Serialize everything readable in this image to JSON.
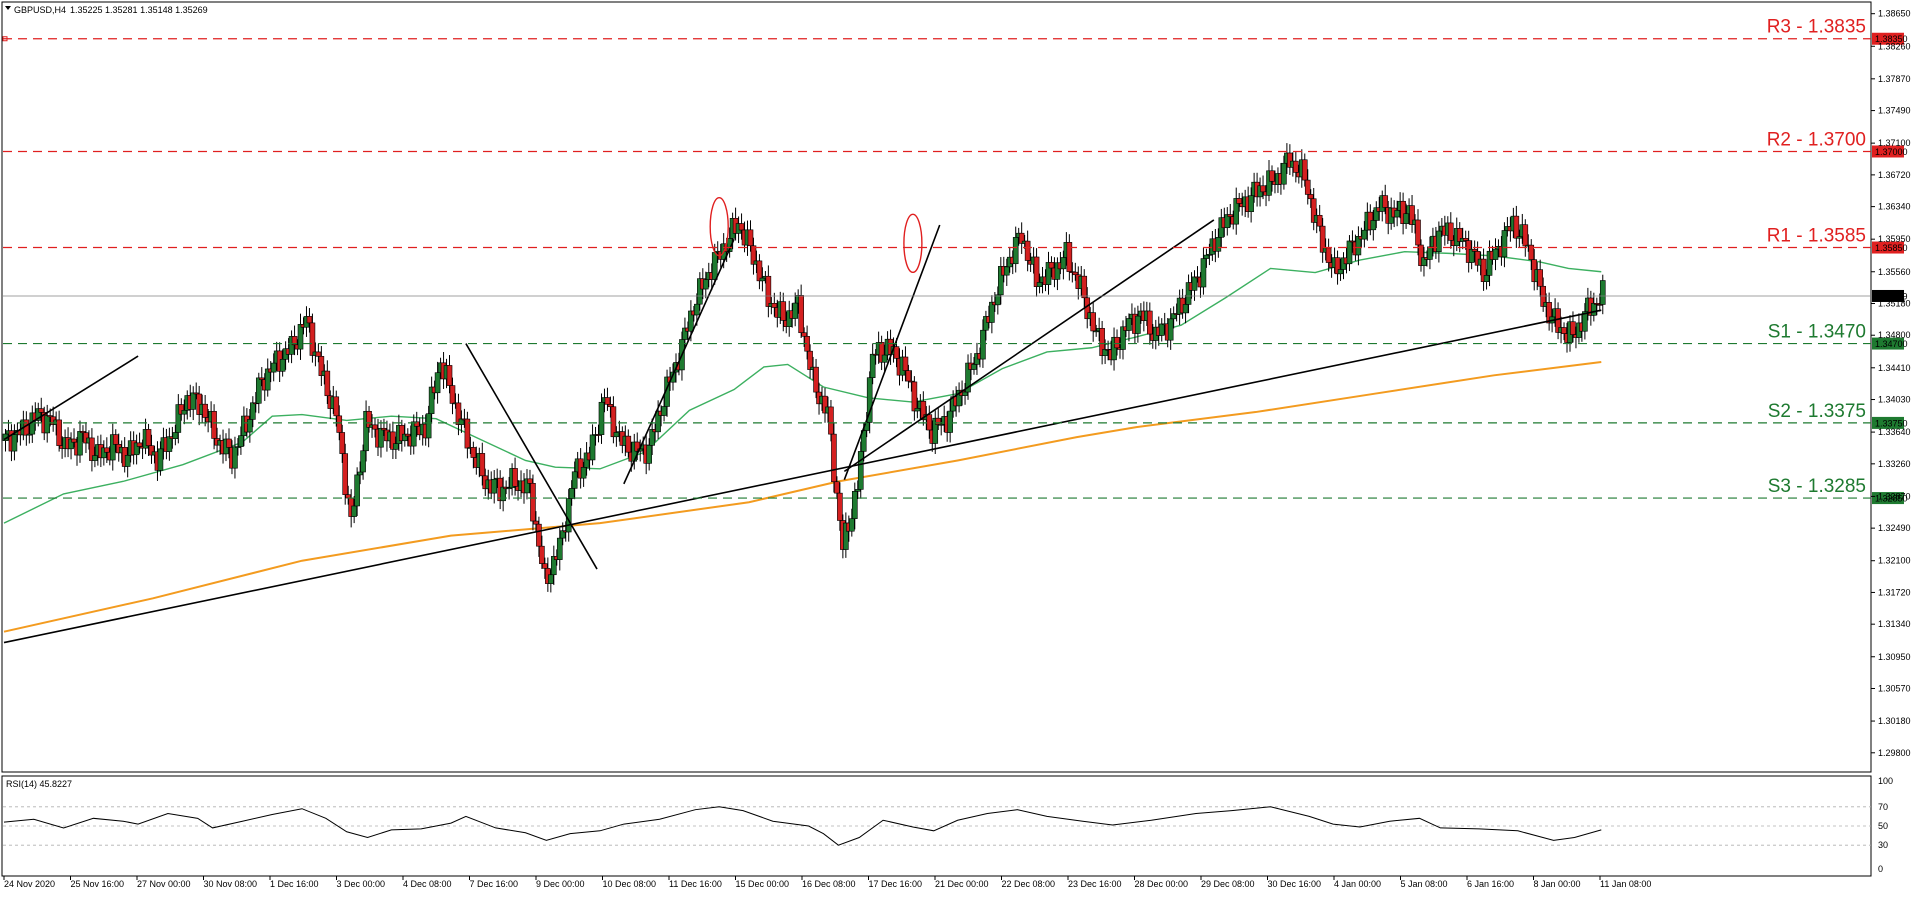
{
  "header": {
    "symbol": "GBPUSD,H4",
    "ohlc": "1.35225 1.35281 1.35148 1.35269"
  },
  "indicator": {
    "label": "RSI(14) 45.8227",
    "ticks": [
      100,
      70,
      50,
      30,
      0
    ]
  },
  "colors": {
    "bull": "#1e7a30",
    "bear": "#d42020",
    "resistance": "#e02020",
    "support": "#1e7a30",
    "ma_fast": "#3cb060",
    "ma_slow": "#f39b1f",
    "current_price": "#000000"
  },
  "chart_data": {
    "type": "candlestick",
    "timeframe": "H4",
    "ylim": [
      1.2957,
      1.3879
    ],
    "y_ticks": [
      1.3865,
      1.3826,
      1.3787,
      1.3749,
      1.371,
      1.3672,
      1.3634,
      1.3595,
      1.3556,
      1.3518,
      1.348,
      1.3441,
      1.3403,
      1.3364,
      1.3326,
      1.3287,
      1.3249,
      1.321,
      1.3172,
      1.3134,
      1.3095,
      1.3057,
      1.3018,
      1.298
    ],
    "x_ticks": [
      "24 Nov 2020",
      "25 Nov 16:00",
      "27 Nov 00:00",
      "30 Nov 08:00",
      "1 Dec 16:00",
      "3 Dec 00:00",
      "4 Dec 08:00",
      "7 Dec 16:00",
      "9 Dec 00:00",
      "10 Dec 08:00",
      "11 Dec 16:00",
      "15 Dec 00:00",
      "16 Dec 08:00",
      "17 Dec 16:00",
      "21 Dec 00:00",
      "22 Dec 08:00",
      "23 Dec 16:00",
      "28 Dec 00:00",
      "29 Dec 08:00",
      "30 Dec 16:00",
      "4 Jan 00:00",
      "5 Jan 08:00",
      "6 Jan 16:00",
      "8 Jan 00:00",
      "11 Jan 08:00"
    ],
    "current_price": 1.3527,
    "levels": [
      {
        "name": "R3",
        "label": "R3 - 1.3835",
        "price": 1.3835,
        "box": "1.38350",
        "kind": "resistance"
      },
      {
        "name": "R2",
        "label": "R2 - 1.3700",
        "price": 1.37,
        "box": "1.37000",
        "kind": "resistance"
      },
      {
        "name": "R1",
        "label": "R1 - 1.3585",
        "price": 1.3585,
        "box": "1.35850",
        "kind": "resistance"
      },
      {
        "name": "S1",
        "label": "S1 - 1.3470",
        "price": 1.347,
        "box": "1.34700",
        "kind": "support"
      },
      {
        "name": "S2",
        "label": "S2 - 1.3375",
        "price": 1.3375,
        "box": "1.33750",
        "kind": "support"
      },
      {
        "name": "S3",
        "label": "S3 - 1.3285",
        "price": 1.3285,
        "box": "1.32850",
        "kind": "support"
      }
    ],
    "current_box": "1.35269",
    "candle_anchors": [
      [
        0,
        1.3355
      ],
      [
        6,
        1.3365
      ],
      [
        11,
        1.3385
      ],
      [
        16,
        1.3375
      ],
      [
        20,
        1.3345
      ],
      [
        26,
        1.3358
      ],
      [
        31,
        1.3335
      ],
      [
        36,
        1.3348
      ],
      [
        41,
        1.3335
      ],
      [
        46,
        1.3356
      ],
      [
        51,
        1.3332
      ],
      [
        56,
        1.3362
      ],
      [
        61,
        1.3405
      ],
      [
        66,
        1.3395
      ],
      [
        71,
        1.3355
      ],
      [
        76,
        1.3335
      ],
      [
        81,
        1.3375
      ],
      [
        86,
        1.3425
      ],
      [
        91,
        1.3448
      ],
      [
        96,
        1.3465
      ],
      [
        101,
        1.3498
      ],
      [
        106,
        1.3435
      ],
      [
        111,
        1.3385
      ],
      [
        116,
        1.3255
      ],
      [
        121,
        1.3375
      ],
      [
        126,
        1.336
      ],
      [
        131,
        1.3355
      ],
      [
        136,
        1.3362
      ],
      [
        141,
        1.337
      ],
      [
        146,
        1.345
      ],
      [
        151,
        1.3395
      ],
      [
        156,
        1.3345
      ],
      [
        161,
        1.3305
      ],
      [
        166,
        1.3295
      ],
      [
        171,
        1.3305
      ],
      [
        176,
        1.3295
      ],
      [
        181,
        1.3185
      ],
      [
        186,
        1.3225
      ],
      [
        191,
        1.3315
      ],
      [
        196,
        1.3335
      ],
      [
        201,
        1.3405
      ],
      [
        206,
        1.3355
      ],
      [
        211,
        1.334
      ],
      [
        216,
        1.3345
      ],
      [
        221,
        1.3405
      ],
      [
        226,
        1.3455
      ],
      [
        231,
        1.3515
      ],
      [
        236,
        1.3555
      ],
      [
        241,
        1.3585
      ],
      [
        246,
        1.3615
      ],
      [
        251,
        1.3575
      ],
      [
        256,
        1.3525
      ],
      [
        261,
        1.3498
      ],
      [
        266,
        1.3515
      ],
      [
        271,
        1.3425
      ],
      [
        276,
        1.3385
      ],
      [
        281,
        1.3225
      ],
      [
        286,
        1.33
      ],
      [
        291,
        1.3455
      ],
      [
        296,
        1.3465
      ],
      [
        301,
        1.3445
      ],
      [
        306,
        1.3395
      ],
      [
        311,
        1.3365
      ],
      [
        316,
        1.338
      ],
      [
        321,
        1.3415
      ],
      [
        326,
        1.3455
      ],
      [
        331,
        1.3515
      ],
      [
        336,
        1.3565
      ],
      [
        341,
        1.36
      ],
      [
        346,
        1.3545
      ],
      [
        351,
        1.3555
      ],
      [
        356,
        1.3575
      ],
      [
        361,
        1.3535
      ],
      [
        366,
        1.348
      ],
      [
        371,
        1.3455
      ],
      [
        376,
        1.349
      ],
      [
        381,
        1.3505
      ],
      [
        386,
        1.348
      ],
      [
        391,
        1.3495
      ],
      [
        396,
        1.3525
      ],
      [
        401,
        1.3555
      ],
      [
        406,
        1.3595
      ],
      [
        411,
        1.3625
      ],
      [
        416,
        1.364
      ],
      [
        421,
        1.3655
      ],
      [
        426,
        1.3665
      ],
      [
        431,
        1.369
      ],
      [
        436,
        1.3668
      ],
      [
        441,
        1.36
      ],
      [
        446,
        1.3555
      ],
      [
        451,
        1.358
      ],
      [
        456,
        1.3605
      ],
      [
        461,
        1.3635
      ],
      [
        466,
        1.3625
      ],
      [
        471,
        1.363
      ],
      [
        476,
        1.3565
      ],
      [
        481,
        1.3605
      ],
      [
        486,
        1.36
      ],
      [
        491,
        1.3585
      ],
      [
        496,
        1.3555
      ],
      [
        501,
        1.3585
      ],
      [
        506,
        1.3615
      ],
      [
        511,
        1.3585
      ],
      [
        516,
        1.352
      ],
      [
        521,
        1.349
      ],
      [
        526,
        1.3478
      ],
      [
        531,
        1.351
      ],
      [
        536,
        1.3528
      ]
    ],
    "ma_fast": [
      [
        0,
        1.3255
      ],
      [
        20,
        1.329
      ],
      [
        40,
        1.3305
      ],
      [
        60,
        1.3325
      ],
      [
        80,
        1.3352
      ],
      [
        90,
        1.3383
      ],
      [
        100,
        1.3385
      ],
      [
        115,
        1.3378
      ],
      [
        130,
        1.3383
      ],
      [
        145,
        1.338
      ],
      [
        160,
        1.3355
      ],
      [
        175,
        1.333
      ],
      [
        185,
        1.3322
      ],
      [
        200,
        1.332
      ],
      [
        215,
        1.334
      ],
      [
        230,
        1.339
      ],
      [
        245,
        1.3415
      ],
      [
        255,
        1.3442
      ],
      [
        263,
        1.3445
      ],
      [
        275,
        1.3418
      ],
      [
        290,
        1.3405
      ],
      [
        305,
        1.34
      ],
      [
        320,
        1.341
      ],
      [
        335,
        1.344
      ],
      [
        350,
        1.346
      ],
      [
        365,
        1.3465
      ],
      [
        380,
        1.3478
      ],
      [
        395,
        1.3492
      ],
      [
        410,
        1.3525
      ],
      [
        425,
        1.356
      ],
      [
        440,
        1.3555
      ],
      [
        455,
        1.357
      ],
      [
        470,
        1.358
      ],
      [
        485,
        1.3578
      ],
      [
        500,
        1.3575
      ],
      [
        515,
        1.3568
      ],
      [
        525,
        1.356
      ],
      [
        536,
        1.3556
      ]
    ],
    "ma_slow": [
      [
        0,
        1.3125
      ],
      [
        50,
        1.3165
      ],
      [
        100,
        1.321
      ],
      [
        150,
        1.324
      ],
      [
        200,
        1.3255
      ],
      [
        250,
        1.328
      ],
      [
        280,
        1.3305
      ],
      [
        320,
        1.333
      ],
      [
        360,
        1.3358
      ],
      [
        380,
        1.337
      ],
      [
        420,
        1.3388
      ],
      [
        460,
        1.341
      ],
      [
        500,
        1.3432
      ],
      [
        536,
        1.3448
      ]
    ],
    "trendlines": [
      [
        [
          0,
          1.3355
        ],
        [
          45,
          1.3455
        ]
      ],
      [
        [
          0,
          1.3112
        ],
        [
          536,
          1.351
        ]
      ],
      [
        [
          155,
          1.347
        ],
        [
          199,
          1.32
        ]
      ],
      [
        [
          208,
          1.3302
        ],
        [
          245,
          1.3595
        ]
      ],
      [
        [
          282,
          1.3307
        ],
        [
          314,
          1.3612
        ]
      ],
      [
        [
          282,
          1.3317
        ],
        [
          406,
          1.3618
        ]
      ]
    ],
    "highlights": [
      [
        240,
        1.361
      ],
      [
        305,
        1.359
      ]
    ],
    "rsi": [
      [
        0,
        54
      ],
      [
        10,
        57
      ],
      [
        20,
        48
      ],
      [
        30,
        58
      ],
      [
        40,
        55
      ],
      [
        45,
        52
      ],
      [
        55,
        63
      ],
      [
        65,
        58
      ],
      [
        70,
        48
      ],
      [
        80,
        55
      ],
      [
        90,
        62
      ],
      [
        100,
        68
      ],
      [
        108,
        58
      ],
      [
        115,
        44
      ],
      [
        122,
        38
      ],
      [
        130,
        46
      ],
      [
        140,
        47
      ],
      [
        150,
        53
      ],
      [
        155,
        60
      ],
      [
        165,
        48
      ],
      [
        175,
        43
      ],
      [
        182,
        35
      ],
      [
        190,
        42
      ],
      [
        200,
        45
      ],
      [
        208,
        52
      ],
      [
        220,
        57
      ],
      [
        232,
        67
      ],
      [
        240,
        70
      ],
      [
        248,
        66
      ],
      [
        258,
        55
      ],
      [
        270,
        50
      ],
      [
        275,
        42
      ],
      [
        280,
        30
      ],
      [
        287,
        38
      ],
      [
        295,
        56
      ],
      [
        305,
        49
      ],
      [
        312,
        45
      ],
      [
        320,
        56
      ],
      [
        330,
        63
      ],
      [
        340,
        67
      ],
      [
        350,
        60
      ],
      [
        362,
        55
      ],
      [
        372,
        51
      ],
      [
        385,
        56
      ],
      [
        400,
        63
      ],
      [
        412,
        66
      ],
      [
        425,
        70
      ],
      [
        438,
        60
      ],
      [
        446,
        52
      ],
      [
        455,
        49
      ],
      [
        465,
        55
      ],
      [
        475,
        58
      ],
      [
        482,
        48
      ],
      [
        495,
        47
      ],
      [
        508,
        45
      ],
      [
        520,
        35
      ],
      [
        527,
        38
      ],
      [
        536,
        46
      ]
    ]
  }
}
